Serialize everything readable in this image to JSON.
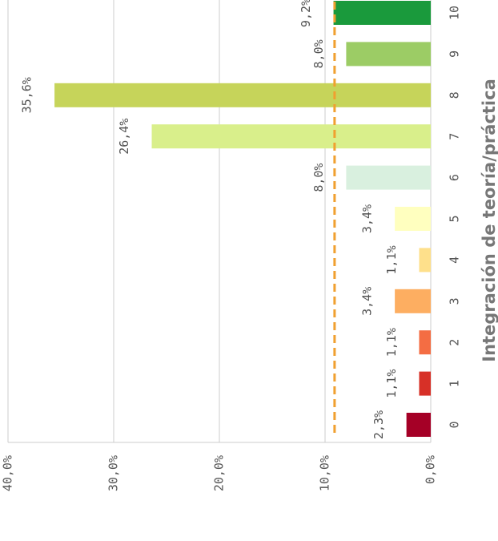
{
  "chart_data": {
    "type": "bar",
    "x_label": "Integración de teoría/práctica",
    "categories": [
      "0",
      "1",
      "2",
      "3",
      "4",
      "5",
      "6",
      "7",
      "8",
      "9",
      "10"
    ],
    "values": [
      2.3,
      1.1,
      1.1,
      3.4,
      1.1,
      3.4,
      8.0,
      26.4,
      35.6,
      8.0,
      9.2
    ],
    "value_labels": [
      "2,3%",
      "1,1%",
      "1,1%",
      "3,4%",
      "1,1%",
      "3,4%",
      "8,0%",
      "26,4%",
      "35,6%",
      "8,0%",
      "9,2%"
    ],
    "colors": [
      "#a50026",
      "#d73027",
      "#f46d43",
      "#fdae61",
      "#fee08b",
      "#ffffbf",
      "#d9f0df",
      "#d9ef8b",
      "#c6d45a",
      "#9ccc65",
      "#1a9a3c"
    ],
    "ylim": [
      0,
      40
    ],
    "yticks": [
      {
        "value": 0,
        "label": "0,0%"
      },
      {
        "value": 10,
        "label": "10,0%"
      },
      {
        "value": 20,
        "label": "20,0%"
      },
      {
        "value": 30,
        "label": "30,0%"
      },
      {
        "value": 40,
        "label": "40,0%"
      }
    ],
    "grid": true,
    "mean_line": {
      "value": 9.1,
      "color": "#f0a030"
    }
  }
}
